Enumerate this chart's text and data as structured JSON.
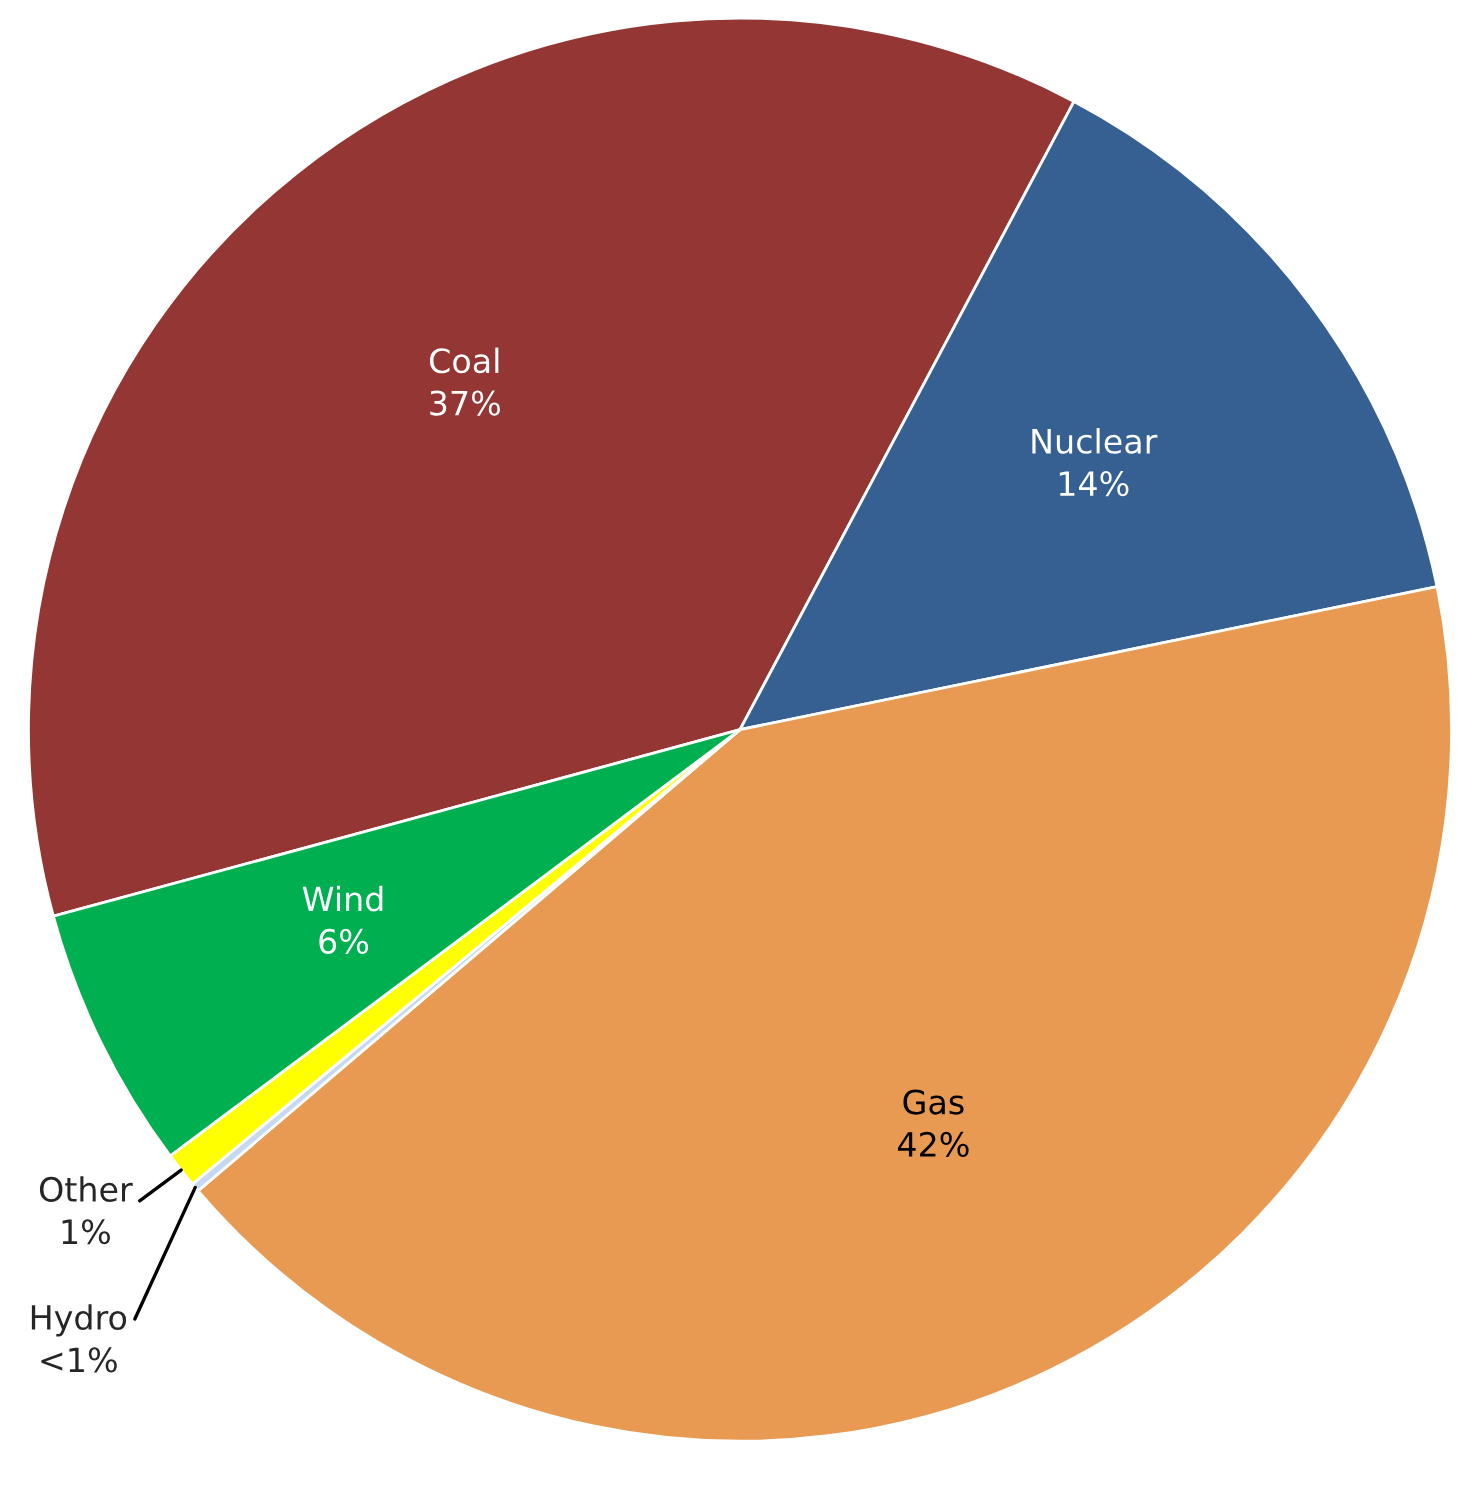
{
  "chart_data": {
    "type": "pie",
    "categories": [
      "Coal",
      "Nuclear",
      "Gas",
      "Hydro",
      "Other",
      "Wind"
    ],
    "values": [
      37,
      14,
      42,
      0.2,
      0.8,
      6
    ],
    "value_labels": [
      "37%",
      "14%",
      "42%",
      "<1%",
      "1%",
      "6%"
    ],
    "colors": [
      "#943634",
      "#366092",
      "#e99a52",
      "#c6d9f1",
      "#ffff00",
      "#00b050"
    ]
  }
}
